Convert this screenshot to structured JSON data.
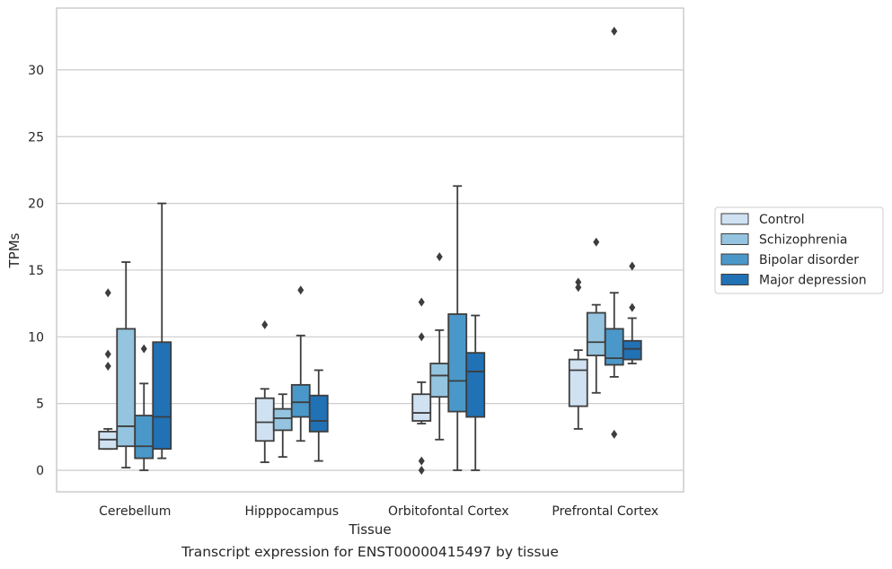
{
  "chart_data": {
    "type": "box",
    "caption": "Transcript expression for ENST00000415497 by tissue",
    "xlabel": "Tissue",
    "ylabel": "TPMs",
    "ylim": [
      -1.6,
      34.5
    ],
    "yticks": [
      0,
      5,
      10,
      15,
      20,
      25,
      30
    ],
    "grid": "horizontal",
    "legend_position": "right",
    "categories": [
      "Cerebellum",
      "Hipppocampus",
      "Orbitofontal Cortex",
      "Prefrontal Cortex"
    ],
    "series": [
      {
        "name": "Control",
        "color": "#d0e1f2",
        "boxes": [
          {
            "whislo": 1.6,
            "q1": 1.6,
            "med": 2.3,
            "q3": 2.9,
            "whishi": 3.1,
            "fliers": [
              7.8,
              8.7,
              13.3
            ]
          },
          {
            "whislo": 0.6,
            "q1": 2.2,
            "med": 3.6,
            "q3": 5.4,
            "whishi": 6.1,
            "fliers": [
              10.9
            ]
          },
          {
            "whislo": 3.5,
            "q1": 3.7,
            "med": 4.3,
            "q3": 5.7,
            "whishi": 6.6,
            "fliers": [
              0.0,
              0.7,
              10.0,
              12.6
            ]
          },
          {
            "whislo": 3.1,
            "q1": 4.8,
            "med": 7.5,
            "q3": 8.3,
            "whishi": 9.0,
            "fliers": [
              13.7,
              14.1
            ]
          }
        ]
      },
      {
        "name": "Schizophrenia",
        "color": "#94c4df",
        "boxes": [
          {
            "whislo": 0.2,
            "q1": 1.8,
            "med": 3.3,
            "q3": 10.6,
            "whishi": 15.6,
            "fliers": []
          },
          {
            "whislo": 1.0,
            "q1": 3.0,
            "med": 3.9,
            "q3": 4.6,
            "whishi": 5.7,
            "fliers": []
          },
          {
            "whislo": 2.3,
            "q1": 5.5,
            "med": 7.1,
            "q3": 8.0,
            "whishi": 10.5,
            "fliers": [
              16.0
            ]
          },
          {
            "whislo": 5.8,
            "q1": 8.6,
            "med": 9.6,
            "q3": 11.8,
            "whishi": 12.4,
            "fliers": [
              17.1
            ]
          }
        ]
      },
      {
        "name": "Bipolar disorder",
        "color": "#4a98c9",
        "boxes": [
          {
            "whislo": 0.0,
            "q1": 0.9,
            "med": 1.8,
            "q3": 4.1,
            "whishi": 6.5,
            "fliers": [
              9.1
            ]
          },
          {
            "whislo": 2.2,
            "q1": 4.0,
            "med": 5.1,
            "q3": 6.4,
            "whishi": 10.1,
            "fliers": [
              13.5
            ]
          },
          {
            "whislo": 0.0,
            "q1": 4.4,
            "med": 6.7,
            "q3": 11.7,
            "whishi": 21.3,
            "fliers": []
          },
          {
            "whislo": 7.0,
            "q1": 7.9,
            "med": 8.4,
            "q3": 10.6,
            "whishi": 13.3,
            "fliers": [
              2.7,
              32.9
            ]
          }
        ]
      },
      {
        "name": "Major depression",
        "color": "#2171b5",
        "boxes": [
          {
            "whislo": 0.9,
            "q1": 1.6,
            "med": 4.0,
            "q3": 9.6,
            "whishi": 20.0,
            "fliers": []
          },
          {
            "whislo": 0.7,
            "q1": 2.9,
            "med": 3.7,
            "q3": 5.6,
            "whishi": 7.5,
            "fliers": []
          },
          {
            "whislo": 0.0,
            "q1": 4.0,
            "med": 7.4,
            "q3": 8.8,
            "whishi": 11.6,
            "fliers": []
          },
          {
            "whislo": 8.0,
            "q1": 8.3,
            "med": 9.1,
            "q3": 9.7,
            "whishi": 11.4,
            "fliers": [
              12.2,
              15.3
            ]
          }
        ]
      }
    ]
  }
}
